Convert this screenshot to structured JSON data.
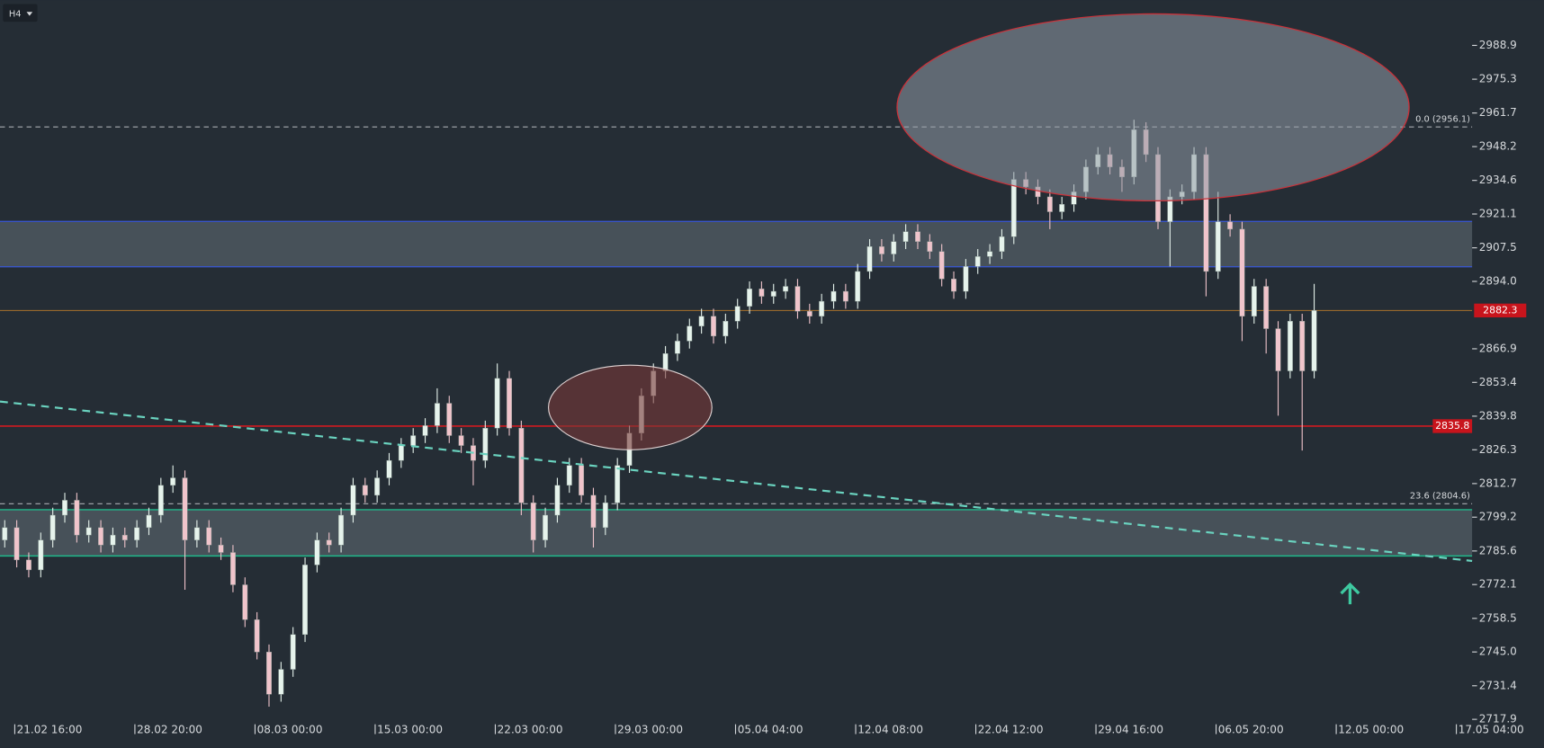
{
  "chart_data": {
    "type": "candlestick",
    "timeframe": "H4",
    "categories": [
      null,
      "21.02 16:00",
      null,
      null,
      null,
      null,
      null,
      null,
      null,
      null,
      null,
      "28.02 20:00",
      null,
      null,
      null,
      null,
      null,
      null,
      null,
      null,
      null,
      "08.03 00:00",
      null,
      null,
      null,
      null,
      null,
      null,
      null,
      null,
      null,
      "15.03 00:00",
      null,
      null,
      null,
      null,
      null,
      null,
      null,
      null,
      null,
      "22.03 00:00",
      null,
      null,
      null,
      null,
      null,
      null,
      null,
      null,
      null,
      "29.03 00:00",
      null,
      null,
      null,
      null,
      null,
      null,
      null,
      null,
      null,
      "05.04 04:00",
      null,
      null,
      null,
      null,
      null,
      null,
      null,
      null,
      null,
      "12.04 08:00",
      null,
      null,
      null,
      null,
      null,
      null,
      null,
      null,
      null,
      "22.04 12:00",
      null,
      null,
      null,
      null,
      null,
      null,
      null,
      null,
      null,
      "29.04 16:00",
      null,
      null,
      null,
      null,
      null,
      null,
      null,
      null,
      null,
      "06.05 20:00",
      null,
      null,
      null,
      null,
      null,
      null,
      null,
      null,
      null,
      "12.05 00:00",
      null,
      null,
      null,
      null,
      null,
      null,
      null,
      null,
      null,
      "17.05 04:00"
    ],
    "open": [
      2790,
      2795,
      2782,
      2778,
      2790,
      2800,
      2806,
      2792,
      2795,
      2788,
      2792,
      2790,
      2795,
      2800,
      2812,
      2815,
      2790,
      2795,
      2788,
      2785,
      2772,
      2758,
      2745,
      2728,
      2738,
      2752,
      2780,
      2790,
      2788,
      2800,
      2812,
      2808,
      2815,
      2822,
      2828,
      2832,
      2836,
      2845,
      2832,
      2828,
      2822,
      2835,
      2855,
      2835,
      2805,
      2790,
      2800,
      2812,
      2820,
      2808,
      2795,
      2805,
      2820,
      2833,
      2848,
      2858,
      2865,
      2870,
      2876,
      2880,
      2872,
      2878,
      2884,
      2891,
      2888,
      2890,
      2892,
      2882,
      2880,
      2886,
      2890,
      2886,
      2898,
      2908,
      2905,
      2910,
      2914,
      2910,
      2906,
      2895,
      2890,
      2900,
      2904,
      2906,
      2912,
      2935,
      2932,
      2928,
      2922,
      2925,
      2930,
      2940,
      2945,
      2940,
      2936,
      2955,
      2945,
      2918,
      2928,
      2930,
      2945,
      2898,
      2918,
      2915,
      2880,
      2892,
      2875,
      2858,
      2878,
      2858,
      null,
      null,
      null,
      null,
      null,
      null,
      null,
      null,
      null,
      null,
      null,
      null
    ],
    "high": [
      2798,
      2798,
      2785,
      2793,
      2803,
      2809,
      2809,
      2798,
      2798,
      2795,
      2795,
      2798,
      2803,
      2815,
      2820,
      2818,
      2798,
      2798,
      2791,
      2788,
      2775,
      2761,
      2748,
      2741,
      2755,
      2783,
      2793,
      2793,
      2803,
      2815,
      2815,
      2818,
      2825,
      2831,
      2835,
      2839,
      2851,
      2848,
      2835,
      2831,
      2838,
      2861,
      2858,
      2838,
      2808,
      2803,
      2815,
      2823,
      2823,
      2811,
      2808,
      2823,
      2836,
      2851,
      2861,
      2868,
      2873,
      2879,
      2883,
      2883,
      2881,
      2887,
      2894,
      2894,
      2893,
      2895,
      2895,
      2885,
      2889,
      2893,
      2893,
      2901,
      2911,
      2911,
      2913,
      2917,
      2917,
      2913,
      2909,
      2898,
      2903,
      2907,
      2909,
      2915,
      2938,
      2938,
      2935,
      2931,
      2928,
      2933,
      2943,
      2948,
      2948,
      2943,
      2959,
      2958,
      2948,
      2931,
      2933,
      2948,
      2948,
      2930,
      2921,
      2918,
      2895,
      2895,
      2878,
      2881,
      2881,
      2893,
      null,
      null,
      null,
      null,
      null,
      null,
      null,
      null,
      null,
      null,
      null,
      null
    ],
    "low": [
      2787,
      2779,
      2775,
      2775,
      2787,
      2797,
      2789,
      2789,
      2785,
      2785,
      2787,
      2787,
      2792,
      2797,
      2809,
      2770,
      2787,
      2785,
      2782,
      2769,
      2755,
      2742,
      2723,
      2725,
      2735,
      2749,
      2777,
      2785,
      2785,
      2797,
      2805,
      2805,
      2812,
      2819,
      2825,
      2829,
      2833,
      2829,
      2825,
      2812,
      2819,
      2832,
      2832,
      2800,
      2785,
      2787,
      2797,
      2809,
      2805,
      2787,
      2792,
      2802,
      2817,
      2830,
      2845,
      2855,
      2862,
      2867,
      2873,
      2869,
      2869,
      2875,
      2881,
      2885,
      2885,
      2887,
      2879,
      2877,
      2877,
      2883,
      2883,
      2883,
      2895,
      2902,
      2902,
      2907,
      2907,
      2903,
      2892,
      2887,
      2887,
      2897,
      2901,
      2903,
      2909,
      2929,
      2925,
      2915,
      2919,
      2922,
      2927,
      2937,
      2937,
      2930,
      2933,
      2942,
      2915,
      2900,
      2925,
      2927,
      2888,
      2895,
      2912,
      2870,
      2877,
      2865,
      2840,
      2855,
      2826,
      2855,
      null,
      null,
      null,
      null,
      null,
      null,
      null,
      null,
      null,
      null,
      null,
      null
    ],
    "close": [
      2795,
      2782,
      2778,
      2790,
      2800,
      2806,
      2792,
      2795,
      2788,
      2792,
      2790,
      2795,
      2800,
      2812,
      2815,
      2790,
      2795,
      2788,
      2785,
      2772,
      2758,
      2745,
      2728,
      2738,
      2752,
      2780,
      2790,
      2788,
      2800,
      2812,
      2808,
      2815,
      2822,
      2828,
      2832,
      2836,
      2845,
      2832,
      2828,
      2822,
      2835,
      2855,
      2835,
      2805,
      2790,
      2800,
      2812,
      2820,
      2808,
      2795,
      2805,
      2820,
      2833,
      2848,
      2858,
      2865,
      2870,
      2876,
      2880,
      2872,
      2878,
      2884,
      2891,
      2888,
      2890,
      2892,
      2882,
      2880,
      2886,
      2890,
      2886,
      2898,
      2908,
      2905,
      2910,
      2914,
      2910,
      2906,
      2895,
      2890,
      2900,
      2904,
      2906,
      2912,
      2935,
      2932,
      2928,
      2922,
      2925,
      2930,
      2940,
      2945,
      2940,
      2936,
      2955,
      2945,
      2918,
      2928,
      2930,
      2945,
      2898,
      2918,
      2915,
      2880,
      2892,
      2875,
      2858,
      2878,
      2858,
      2882.3,
      null,
      null,
      null,
      null,
      null,
      null,
      null,
      null,
      null,
      null,
      null,
      null
    ],
    "up_color": "#e6f3ec",
    "down_color": "#f0c4cb",
    "ylim": [
      2717.9,
      3007.1
    ],
    "yticks": [
      2988.9,
      2975.3,
      2961.7,
      2948.2,
      2934.6,
      2921.1,
      2907.5,
      {
        "value": 2894,
        "label": "2894.0"
      },
      2866.9,
      2853.4,
      2839.8,
      2826.3,
      2812.7,
      2799.2,
      2785.6,
      2772.1,
      2758.5,
      {
        "value": 2745,
        "label": "2745.0"
      },
      2731.4,
      2717.9
    ],
    "levels": [
      {
        "value": 2956.1,
        "label": "0.0 (2956.1)"
      },
      {
        "value": 2804.6,
        "label": "23.6 (2804.6)"
      }
    ],
    "zones": [
      {
        "from": 2899.9,
        "to": 2918.1,
        "color": "#3a55c8"
      },
      {
        "from": 2783.6,
        "to": 2802.2,
        "color": "#1fb88a"
      }
    ],
    "badges": [
      {
        "value": 2882.3,
        "color": "#c8141c",
        "line": "#a8702c",
        "position": "axis"
      },
      {
        "value": 2835.8,
        "color": "#c8141c",
        "line": "#d01a20",
        "position": "inside"
      }
    ]
  }
}
